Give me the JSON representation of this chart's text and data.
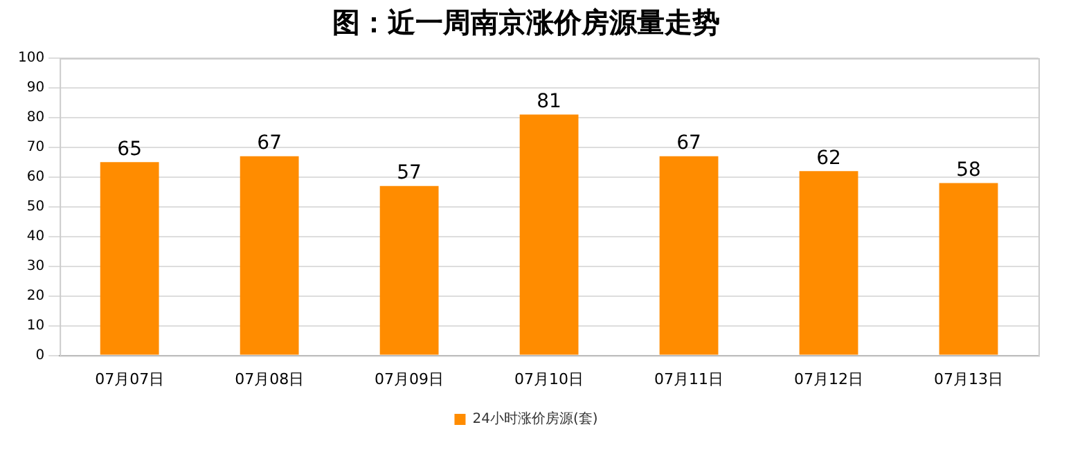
{
  "chart_data": {
    "type": "bar",
    "title": "图：近一周南京涨价房源量走势",
    "categories": [
      "07月07日",
      "07月08日",
      "07月09日",
      "07月10日",
      "07月11日",
      "07月12日",
      "07月13日"
    ],
    "series": [
      {
        "name": "24小时涨价房源(套)",
        "color": "#ff8c00",
        "values": [
          65,
          67,
          57,
          81,
          67,
          62,
          58
        ]
      }
    ],
    "ylim": [
      0,
      100
    ],
    "yticks": [
      0,
      10,
      20,
      30,
      40,
      50,
      60,
      70,
      80,
      90,
      100
    ],
    "grid": "y",
    "legend": "bottom",
    "data_labels": true
  }
}
